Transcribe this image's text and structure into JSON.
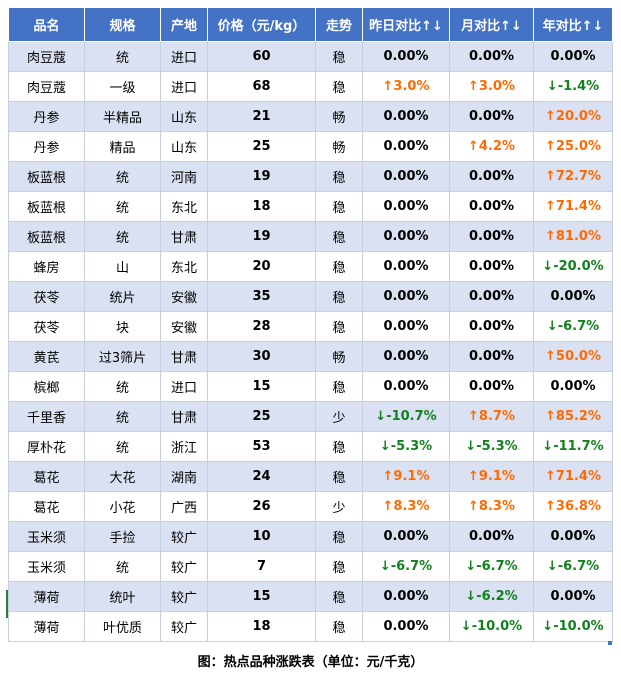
{
  "headers": [
    "品名",
    "规格",
    "产地",
    "价格（元/kg）",
    "走势",
    "昨日对比↑↓",
    "月对比↑↓",
    "年对比↑↓"
  ],
  "colors": {
    "header_bg": "#4472c4",
    "band": "#d9e1f2",
    "up": "#ff6a00",
    "down": "#12801e"
  },
  "rows": [
    {
      "name": "肉豆蔻",
      "spec": "统",
      "origin": "进口",
      "price": "60",
      "trend": "稳",
      "day": "0.00%",
      "day_dir": "flat",
      "month": "0.00%",
      "month_dir": "flat",
      "year": "0.00%",
      "year_dir": "flat"
    },
    {
      "name": "肉豆蔻",
      "spec": "一级",
      "origin": "进口",
      "price": "68",
      "trend": "稳",
      "day": "↑3.0%",
      "day_dir": "up",
      "month": "↑3.0%",
      "month_dir": "up",
      "year": "↓-1.4%",
      "year_dir": "down"
    },
    {
      "name": "丹参",
      "spec": "半精品",
      "origin": "山东",
      "price": "21",
      "trend": "畅",
      "day": "0.00%",
      "day_dir": "flat",
      "month": "0.00%",
      "month_dir": "flat",
      "year": "↑20.0%",
      "year_dir": "up"
    },
    {
      "name": "丹参",
      "spec": "精品",
      "origin": "山东",
      "price": "25",
      "trend": "畅",
      "day": "0.00%",
      "day_dir": "flat",
      "month": "↑4.2%",
      "month_dir": "up",
      "year": "↑25.0%",
      "year_dir": "up"
    },
    {
      "name": "板蓝根",
      "spec": "统",
      "origin": "河南",
      "price": "19",
      "trend": "稳",
      "day": "0.00%",
      "day_dir": "flat",
      "month": "0.00%",
      "month_dir": "flat",
      "year": "↑72.7%",
      "year_dir": "up"
    },
    {
      "name": "板蓝根",
      "spec": "统",
      "origin": "东北",
      "price": "18",
      "trend": "稳",
      "day": "0.00%",
      "day_dir": "flat",
      "month": "0.00%",
      "month_dir": "flat",
      "year": "↑71.4%",
      "year_dir": "up"
    },
    {
      "name": "板蓝根",
      "spec": "统",
      "origin": "甘肃",
      "price": "19",
      "trend": "稳",
      "day": "0.00%",
      "day_dir": "flat",
      "month": "0.00%",
      "month_dir": "flat",
      "year": "↑81.0%",
      "year_dir": "up"
    },
    {
      "name": "蜂房",
      "spec": "山",
      "origin": "东北",
      "price": "20",
      "trend": "稳",
      "day": "0.00%",
      "day_dir": "flat",
      "month": "0.00%",
      "month_dir": "flat",
      "year": "↓-20.0%",
      "year_dir": "down"
    },
    {
      "name": "茯苓",
      "spec": "统片",
      "origin": "安徽",
      "price": "35",
      "trend": "稳",
      "day": "0.00%",
      "day_dir": "flat",
      "month": "0.00%",
      "month_dir": "flat",
      "year": "0.00%",
      "year_dir": "flat"
    },
    {
      "name": "茯苓",
      "spec": "块",
      "origin": "安徽",
      "price": "28",
      "trend": "稳",
      "day": "0.00%",
      "day_dir": "flat",
      "month": "0.00%",
      "month_dir": "flat",
      "year": "↓-6.7%",
      "year_dir": "down"
    },
    {
      "name": "黄芪",
      "spec": "过3筛片",
      "origin": "甘肃",
      "price": "30",
      "trend": "畅",
      "day": "0.00%",
      "day_dir": "flat",
      "month": "0.00%",
      "month_dir": "flat",
      "year": "↑50.0%",
      "year_dir": "up"
    },
    {
      "name": "槟榔",
      "spec": "统",
      "origin": "进口",
      "price": "15",
      "trend": "稳",
      "day": "0.00%",
      "day_dir": "flat",
      "month": "0.00%",
      "month_dir": "flat",
      "year": "0.00%",
      "year_dir": "flat"
    },
    {
      "name": "千里香",
      "spec": "统",
      "origin": "甘肃",
      "price": "25",
      "trend": "少",
      "day": "↓-10.7%",
      "day_dir": "down",
      "month": "↑8.7%",
      "month_dir": "up",
      "year": "↑85.2%",
      "year_dir": "up"
    },
    {
      "name": "厚朴花",
      "spec": "统",
      "origin": "浙江",
      "price": "53",
      "trend": "稳",
      "day": "↓-5.3%",
      "day_dir": "down",
      "month": "↓-5.3%",
      "month_dir": "down",
      "year": "↓-11.7%",
      "year_dir": "down"
    },
    {
      "name": "葛花",
      "spec": "大花",
      "origin": "湖南",
      "price": "24",
      "trend": "稳",
      "day": "↑9.1%",
      "day_dir": "up",
      "month": "↑9.1%",
      "month_dir": "up",
      "year": "↑71.4%",
      "year_dir": "up"
    },
    {
      "name": "葛花",
      "spec": "小花",
      "origin": "广西",
      "price": "26",
      "trend": "少",
      "day": "↑8.3%",
      "day_dir": "up",
      "month": "↑8.3%",
      "month_dir": "up",
      "year": "↑36.8%",
      "year_dir": "up"
    },
    {
      "name": "玉米须",
      "spec": "手捡",
      "origin": "较广",
      "price": "10",
      "trend": "稳",
      "day": "0.00%",
      "day_dir": "flat",
      "month": "0.00%",
      "month_dir": "flat",
      "year": "0.00%",
      "year_dir": "flat"
    },
    {
      "name": "玉米须",
      "spec": "统",
      "origin": "较广",
      "price": "7",
      "trend": "稳",
      "day": "↓-6.7%",
      "day_dir": "down",
      "month": "↓-6.7%",
      "month_dir": "down",
      "year": "↓-6.7%",
      "year_dir": "down"
    },
    {
      "name": "薄荷",
      "spec": "统叶",
      "origin": "较广",
      "price": "15",
      "trend": "稳",
      "day": "0.00%",
      "day_dir": "flat",
      "month": "↓-6.2%",
      "month_dir": "down",
      "year": "0.00%",
      "year_dir": "flat"
    },
    {
      "name": "薄荷",
      "spec": "叶优质",
      "origin": "较广",
      "price": "18",
      "trend": "稳",
      "day": "0.00%",
      "day_dir": "flat",
      "month": "↓-10.0%",
      "month_dir": "down",
      "year": "↓-10.0%",
      "year_dir": "down"
    }
  ],
  "caption": "图：热点品种涨跌表（单位：元/千克）"
}
